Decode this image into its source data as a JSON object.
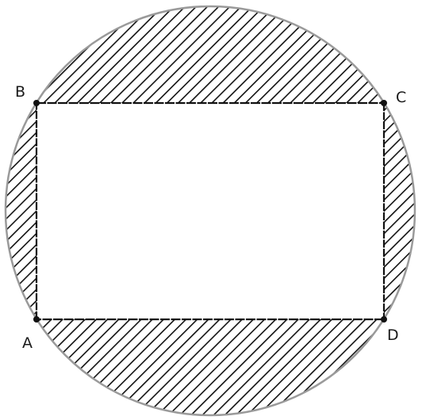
{
  "figure": {
    "description_free": true,
    "vertices": {
      "a": "A",
      "b": "B",
      "c": "C",
      "d": "D"
    },
    "colors": {
      "stroke": "#111111",
      "circle_edge": "#9a9a9a",
      "hatch": "#111111",
      "background": "#ffffff"
    }
  }
}
